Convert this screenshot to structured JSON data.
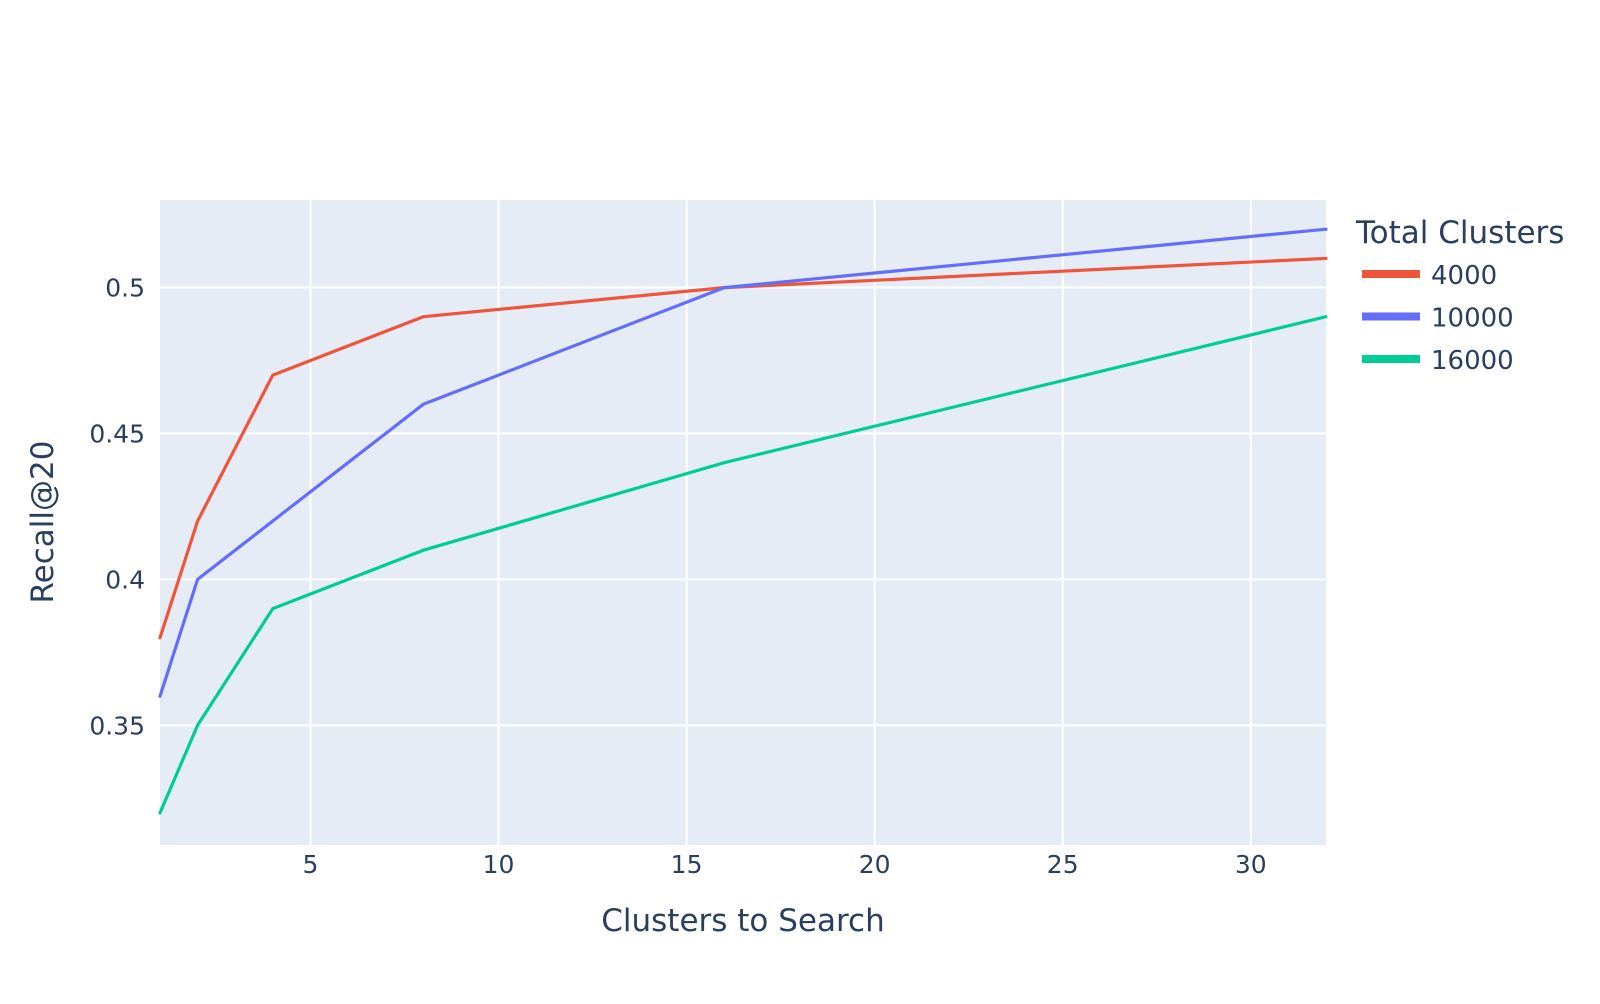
{
  "chart_data": {
    "type": "line",
    "title": "",
    "xlabel": "Clusters to Search",
    "ylabel": "Recall@20",
    "xlim": [
      1,
      32
    ],
    "ylim": [
      0.309,
      0.53
    ],
    "x_ticks": [
      5,
      10,
      15,
      20,
      25,
      30
    ],
    "y_ticks": [
      0.35,
      0.4,
      0.45,
      0.5
    ],
    "x_tick_labels": [
      "5",
      "10",
      "15",
      "20",
      "25",
      "30"
    ],
    "y_tick_labels": [
      "0.35",
      "0.4",
      "0.45",
      "0.5"
    ],
    "grid": true,
    "plot_background": "#E5ECF6",
    "gridline_color": "#FFFFFF",
    "legend": {
      "title": "Total Clusters",
      "placement": "right"
    },
    "x": [
      1,
      2,
      4,
      8,
      16,
      32
    ],
    "series": [
      {
        "name": "4000",
        "color": "#EF553B",
        "values": [
          0.38,
          0.42,
          0.47,
          0.49,
          0.5,
          0.51
        ]
      },
      {
        "name": "10000",
        "color": "#636EFA",
        "values": [
          0.36,
          0.4,
          0.42,
          0.46,
          0.5,
          0.52
        ]
      },
      {
        "name": "16000",
        "color": "#00CC96",
        "values": [
          0.32,
          0.35,
          0.39,
          0.41,
          0.44,
          0.49
        ]
      }
    ]
  }
}
